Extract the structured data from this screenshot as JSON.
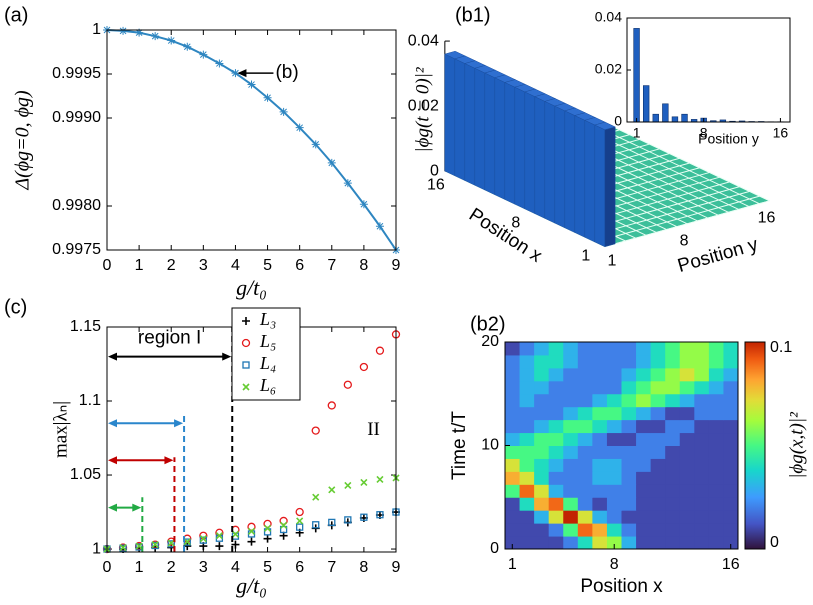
{
  "chart_data": [
    {
      "type": "line",
      "label": "(a)",
      "xlabel": "g/t₀",
      "ylabel": "Δ(ϕg=0, ϕg)",
      "color": "#2e86c1",
      "x": [
        0,
        0.5,
        1,
        1.5,
        2,
        2.5,
        3,
        3.5,
        4,
        4.5,
        5,
        5.5,
        6,
        6.5,
        7,
        7.5,
        8,
        8.5,
        9
      ],
      "values": [
        1,
        0.99999,
        0.99997,
        0.99993,
        0.99988,
        0.99981,
        0.99972,
        0.99962,
        0.99951,
        0.99938,
        0.99923,
        0.99907,
        0.99889,
        0.9987,
        0.99849,
        0.99826,
        0.99802,
        0.99777,
        0.9975
      ],
      "xlim": [
        0,
        9
      ],
      "ylim": [
        0.9975,
        1
      ],
      "xticks": [
        0,
        1,
        2,
        3,
        4,
        5,
        6,
        7,
        8,
        9
      ],
      "yticks": [
        1,
        0.9995,
        {
          "value": 0.999,
          "label": "0.9990"
        },
        {
          "value": 0.998,
          "label": "0.9980"
        },
        0.9975
      ],
      "annotation": {
        "text": "(b)",
        "x": 4,
        "y": 0.99951
      }
    },
    {
      "type": "bar3d",
      "label": "(b1)",
      "xlabel": "Position x",
      "ylabel": "Position y",
      "zlabel": "|ϕg(t = 0)|²",
      "color": "#1f5fbf",
      "x": [
        1,
        2,
        3,
        4,
        5,
        6,
        7,
        8,
        9,
        10,
        11,
        12,
        13,
        14,
        15,
        16
      ],
      "values": [
        0.036,
        0.036,
        0.036,
        0.036,
        0.036,
        0.036,
        0.036,
        0.036,
        0.036,
        0.036,
        0.036,
        0.036,
        0.036,
        0.036,
        0.036,
        0.036
      ],
      "xticks": [
        1,
        8,
        16
      ],
      "yticks": [
        1,
        8,
        16
      ],
      "zlim": [
        0,
        0.04
      ],
      "zticks": [
        0,
        0.02,
        0.04
      ],
      "inset": {
        "xlabel": "Position y",
        "color": "#1f5fbf",
        "categories": [
          1,
          2,
          3,
          4,
          5,
          6,
          7,
          8,
          9,
          10,
          11,
          12,
          13,
          14,
          15,
          16
        ],
        "values": [
          0.036,
          0.014,
          0.003,
          0.007,
          0.002,
          0.003,
          0.001,
          0.0015,
          0.0005,
          0.0008,
          0.0003,
          0.0004,
          0.0002,
          0.0002,
          0.0001,
          0.0001
        ],
        "xlim": [
          0,
          17
        ],
        "ylim": [
          0,
          0.04
        ],
        "xticks": [
          1,
          8,
          16
        ],
        "yticks": [
          0,
          0.02,
          0.04
        ]
      }
    },
    {
      "type": "scatter",
      "label": "(c)",
      "xlabel": "g/t₀",
      "ylabel": "max|λₙ|",
      "x": [
        0,
        0.5,
        1,
        1.5,
        2,
        2.5,
        3,
        3.5,
        4,
        4.5,
        5,
        5.5,
        6,
        6.5,
        7,
        7.5,
        8,
        8.5,
        9
      ],
      "series": [
        {
          "name": "L₃",
          "color": "#000000",
          "marker": "plus",
          "values": [
            1,
            1,
            1.001,
            1.001,
            1.001,
            1.002,
            1.002,
            1.002,
            1.003,
            1.005,
            1.007,
            1.009,
            1.011,
            1.014,
            1.016,
            1.018,
            1.021,
            1.023,
            1.025
          ]
        },
        {
          "name": "L₅",
          "color": "#e41a1c",
          "marker": "circle",
          "values": [
            1,
            1.001,
            1.002,
            1.003,
            1.005,
            1.007,
            1.009,
            1.011,
            1.013,
            1.015,
            1.017,
            1.019,
            1.025,
            1.08,
            1.097,
            1.111,
            1.123,
            1.134,
            1.145
          ]
        },
        {
          "name": "L₄",
          "color": "#1f77b4",
          "marker": "square",
          "values": [
            1,
            1.0006,
            1.0014,
            1.0024,
            1.0035,
            1.0047,
            1.006,
            1.0073,
            1.0087,
            1.0102,
            1.0116,
            1.0132,
            1.0148,
            1.0164,
            1.018,
            1.0197,
            1.0215,
            1.0232,
            1.025
          ]
        },
        {
          "name": "L₆",
          "color": "#66cc33",
          "marker": "x",
          "values": [
            1,
            1.001,
            1.002,
            1.003,
            1.004,
            1.005,
            1.007,
            1.009,
            1.01,
            1.012,
            1.014,
            1.016,
            1.019,
            1.035,
            1.04,
            1.043,
            1.045,
            1.047,
            1.048
          ]
        }
      ],
      "regions": [
        {
          "name": "region I",
          "x": 3.9,
          "y": 1.13,
          "top": 1.15,
          "color": "#000000"
        },
        {
          "x": 2.4,
          "y": 1.085,
          "top": 1.09,
          "color": "#2a86cc"
        },
        {
          "x": 2.1,
          "y": 1.06,
          "top": 1.062,
          "color": "#c00000"
        },
        {
          "x": 1.1,
          "y": 1.028,
          "top": 1.035,
          "color": "#22aa44"
        }
      ],
      "annotation": {
        "text": "II",
        "x": 8.3,
        "y": 1.08
      },
      "xlim": [
        0,
        9
      ],
      "ylim": [
        0.998,
        1.15
      ],
      "xticks": [
        0,
        1,
        2,
        3,
        4,
        5,
        6,
        7,
        8,
        9
      ],
      "yticks": [
        1,
        1.05,
        1.1,
        1.15
      ]
    },
    {
      "type": "heatmap",
      "label": "(b2)",
      "xlabel": "Position x",
      "ylabel": "Time t/T",
      "clabel": "|ϕg(x,t)|²",
      "xlim": [
        0.5,
        16.5
      ],
      "ylim": [
        0,
        20
      ],
      "xticks": [
        1,
        8,
        16
      ],
      "yticks": [
        0,
        10,
        20
      ],
      "clim": [
        0,
        0.1
      ],
      "cticks": [
        0,
        0.1
      ],
      "z": [
        [
          0.01,
          0.01,
          0.01,
          0.01,
          0.02,
          0.04,
          0.07,
          0.06,
          0.03,
          0.01,
          0.01,
          0.01,
          0.01,
          0.01,
          0.01,
          0.01
        ],
        [
          0.01,
          0.01,
          0.01,
          0.02,
          0.05,
          0.09,
          0.08,
          0.04,
          0.02,
          0.01,
          0.01,
          0.01,
          0.01,
          0.01,
          0.01,
          0.01
        ],
        [
          0.01,
          0.01,
          0.03,
          0.07,
          0.1,
          0.07,
          0.03,
          0.02,
          0.01,
          0.01,
          0.01,
          0.01,
          0.01,
          0.01,
          0.01,
          0.01
        ],
        [
          0.01,
          0.04,
          0.08,
          0.09,
          0.05,
          0.02,
          0.01,
          0.02,
          0.02,
          0.01,
          0.01,
          0.01,
          0.01,
          0.01,
          0.01,
          0.01
        ],
        [
          0.05,
          0.09,
          0.07,
          0.03,
          0.02,
          0.02,
          0.02,
          0.02,
          0.02,
          0.01,
          0.01,
          0.01,
          0.01,
          0.01,
          0.01,
          0.01
        ],
        [
          0.08,
          0.07,
          0.04,
          0.02,
          0.02,
          0.02,
          0.03,
          0.03,
          0.02,
          0.01,
          0.01,
          0.01,
          0.01,
          0.01,
          0.01,
          0.01
        ],
        [
          0.07,
          0.05,
          0.04,
          0.03,
          0.02,
          0.02,
          0.03,
          0.03,
          0.02,
          0.02,
          0.01,
          0.01,
          0.01,
          0.01,
          0.01,
          0.01
        ],
        [
          0.05,
          0.05,
          0.05,
          0.04,
          0.03,
          0.02,
          0.02,
          0.02,
          0.02,
          0.02,
          0.02,
          0.01,
          0.01,
          0.01,
          0.01,
          0.01
        ],
        [
          0.03,
          0.04,
          0.05,
          0.05,
          0.04,
          0.03,
          0.02,
          0.01,
          0.01,
          0.02,
          0.02,
          0.02,
          0.01,
          0.01,
          0.01,
          0.01
        ],
        [
          0.02,
          0.02,
          0.03,
          0.04,
          0.05,
          0.05,
          0.04,
          0.03,
          0.02,
          0.01,
          0.01,
          0.02,
          0.02,
          0.01,
          0.01,
          0.01
        ],
        [
          0.02,
          0.02,
          0.02,
          0.02,
          0.03,
          0.04,
          0.05,
          0.05,
          0.04,
          0.03,
          0.02,
          0.01,
          0.01,
          0.02,
          0.02,
          0.02
        ],
        [
          0.02,
          0.03,
          0.02,
          0.02,
          0.02,
          0.02,
          0.03,
          0.04,
          0.05,
          0.06,
          0.05,
          0.04,
          0.03,
          0.02,
          0.02,
          0.02
        ],
        [
          0.02,
          0.03,
          0.03,
          0.02,
          0.02,
          0.02,
          0.02,
          0.02,
          0.04,
          0.05,
          0.06,
          0.06,
          0.05,
          0.04,
          0.03,
          0.02
        ],
        [
          0.02,
          0.03,
          0.04,
          0.03,
          0.02,
          0.02,
          0.02,
          0.02,
          0.03,
          0.04,
          0.05,
          0.06,
          0.07,
          0.06,
          0.04,
          0.03
        ],
        [
          0.02,
          0.03,
          0.04,
          0.04,
          0.03,
          0.02,
          0.02,
          0.02,
          0.02,
          0.03,
          0.04,
          0.05,
          0.06,
          0.06,
          0.05,
          0.04
        ],
        [
          0.01,
          0.02,
          0.03,
          0.04,
          0.03,
          0.02,
          0.02,
          0.02,
          0.02,
          0.03,
          0.04,
          0.05,
          0.06,
          0.06,
          0.05,
          0.04
        ]
      ]
    }
  ]
}
